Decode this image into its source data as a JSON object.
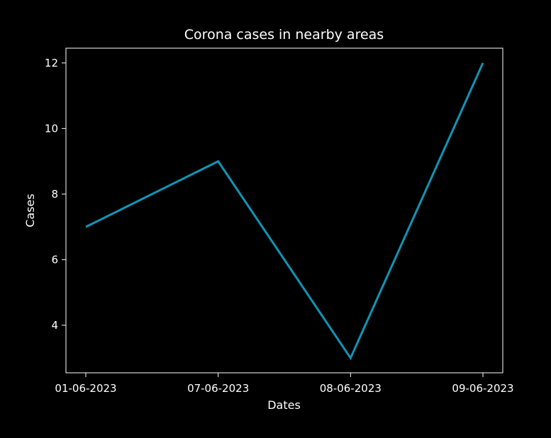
{
  "chart_data": {
    "type": "line",
    "title": "Corona cases in nearby areas",
    "xlabel": "Dates",
    "ylabel": "Cases",
    "categories": [
      "01-06-2023",
      "07-06-2023",
      "08-06-2023",
      "09-06-2023"
    ],
    "series": [
      {
        "values": [
          7,
          9,
          3,
          12
        ],
        "color": "#0f95b5"
      }
    ],
    "yticks": [
      4,
      6,
      8,
      10,
      12
    ],
    "ylim": [
      2.55,
      12.45
    ],
    "grid": false,
    "background": "#000000",
    "axis_color": "#ffffff"
  }
}
